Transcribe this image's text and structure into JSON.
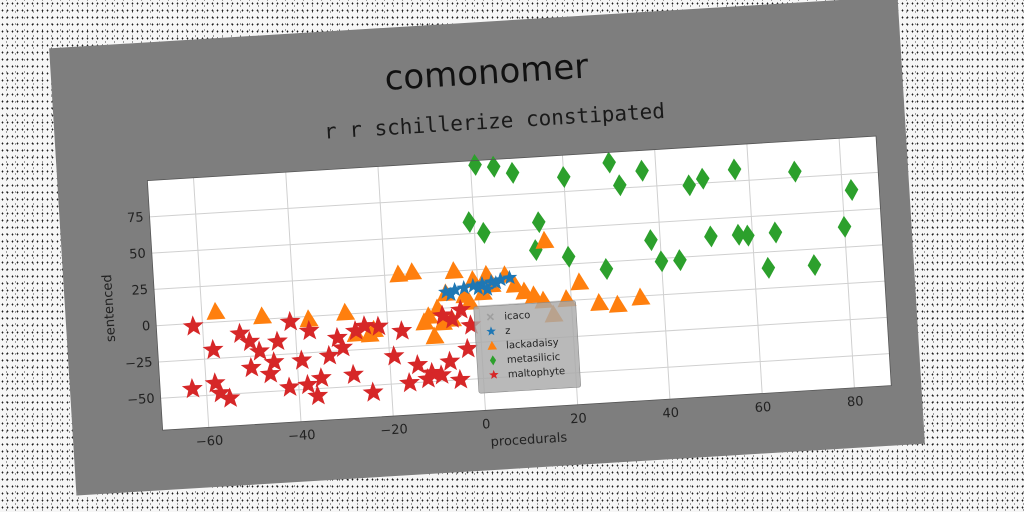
{
  "chart_data": {
    "type": "scatter",
    "title": "comonomer",
    "subtitle": "r r schillerize constipated",
    "xlabel": "procedurals",
    "ylabel": "sentenced",
    "xlim": [
      -70,
      88
    ],
    "ylim": [
      -72,
      100
    ],
    "xticks": [
      -60,
      -40,
      -20,
      0,
      20,
      40,
      60,
      80
    ],
    "yticks": [
      -50,
      -25,
      0,
      25,
      50,
      75
    ],
    "grid": true,
    "legend_position": "lower-center",
    "series": [
      {
        "name": "icaco",
        "marker": "x",
        "color": "#9e9e9e",
        "points": []
      },
      {
        "name": "z",
        "marker": "star",
        "color": "#1f77b4",
        "points": [
          [
            -7,
            11
          ],
          [
            -5,
            12
          ],
          [
            -3,
            13
          ],
          [
            -1,
            14
          ],
          [
            1,
            15
          ],
          [
            3,
            16
          ],
          [
            5,
            17
          ],
          [
            7,
            18
          ],
          [
            -6,
            9
          ],
          [
            0,
            12
          ],
          [
            4,
            15
          ],
          [
            2,
            11
          ]
        ]
      },
      {
        "name": "lackadaisy",
        "marker": "triangle",
        "color": "#ff7f0e",
        "points": [
          [
            -57,
            7
          ],
          [
            -47,
            2
          ],
          [
            -37,
            -2
          ],
          [
            -29,
            1
          ],
          [
            -27,
            -14
          ],
          [
            -24,
            -15
          ],
          [
            -23,
            -12
          ],
          [
            -17,
            25
          ],
          [
            -14,
            26
          ],
          [
            -12,
            -9
          ],
          [
            -11,
            -5
          ],
          [
            -10,
            -19
          ],
          [
            -9,
            0
          ],
          [
            -8,
            -10
          ],
          [
            -7,
            10
          ],
          [
            -6,
            -8
          ],
          [
            -5,
            25
          ],
          [
            -3,
            8
          ],
          [
            -2,
            3
          ],
          [
            -1,
            18
          ],
          [
            1,
            9
          ],
          [
            2,
            21
          ],
          [
            3,
            14
          ],
          [
            6,
            20
          ],
          [
            8,
            13
          ],
          [
            10,
            8
          ],
          [
            12,
            5
          ],
          [
            14,
            1
          ],
          [
            16,
            -9
          ],
          [
            19,
            1
          ],
          [
            22,
            12
          ],
          [
            26,
            -3
          ],
          [
            30,
            -5
          ],
          [
            35,
            -1
          ],
          [
            15,
            42
          ]
        ]
      },
      {
        "name": "metasilicic",
        "marker": "diamond",
        "color": "#2ca02c",
        "points": [
          [
            1,
            97
          ],
          [
            5,
            95
          ],
          [
            9,
            90
          ],
          [
            20,
            85
          ],
          [
            30,
            93
          ],
          [
            32,
            77
          ],
          [
            37,
            86
          ],
          [
            47,
            74
          ],
          [
            50,
            78
          ],
          [
            57,
            83
          ],
          [
            70,
            79
          ],
          [
            82,
            64
          ],
          [
            -1,
            58
          ],
          [
            2,
            50
          ],
          [
            14,
            55
          ],
          [
            13,
            36
          ],
          [
            20,
            30
          ],
          [
            28,
            20
          ],
          [
            38,
            38
          ],
          [
            40,
            23
          ],
          [
            44,
            23
          ],
          [
            51,
            38
          ],
          [
            57,
            38
          ],
          [
            59,
            37
          ],
          [
            65,
            38
          ],
          [
            63,
            14
          ],
          [
            73,
            14
          ],
          [
            80,
            39
          ]
        ]
      },
      {
        "name": "maltophyte",
        "marker": "star",
        "color": "#d62728",
        "points": [
          [
            -62,
            -2
          ],
          [
            -58,
            -19
          ],
          [
            -52,
            -9
          ],
          [
            -50,
            -15
          ],
          [
            -48,
            -22
          ],
          [
            -45,
            -30
          ],
          [
            -41,
            -3
          ],
          [
            -39,
            -30
          ],
          [
            -37,
            -10
          ],
          [
            -35,
            -43
          ],
          [
            -33,
            -28
          ],
          [
            -31,
            -16
          ],
          [
            -30,
            -23
          ],
          [
            -27,
            -12
          ],
          [
            -25,
            -9
          ],
          [
            -22,
            -10
          ],
          [
            -19,
            -31
          ],
          [
            -17,
            -14
          ],
          [
            -14,
            -38
          ],
          [
            -11,
            -44
          ],
          [
            -9,
            -46
          ],
          [
            -7,
            -37
          ],
          [
            -5,
            -50
          ],
          [
            -3,
            -29
          ],
          [
            -2,
            -13
          ],
          [
            -4,
            -2
          ],
          [
            -6,
            -8
          ],
          [
            -8,
            -5
          ],
          [
            -58,
            -42
          ],
          [
            -57,
            -49
          ],
          [
            -55,
            -53
          ],
          [
            -50,
            -33
          ],
          [
            -46,
            -38
          ],
          [
            -42,
            -48
          ],
          [
            -38,
            -47
          ],
          [
            -36,
            -55
          ],
          [
            -28,
            -42
          ],
          [
            -24,
            -55
          ],
          [
            -16,
            -50
          ],
          [
            -12,
            -48
          ],
          [
            -63,
            -45
          ],
          [
            -44,
            -16
          ]
        ]
      }
    ]
  }
}
